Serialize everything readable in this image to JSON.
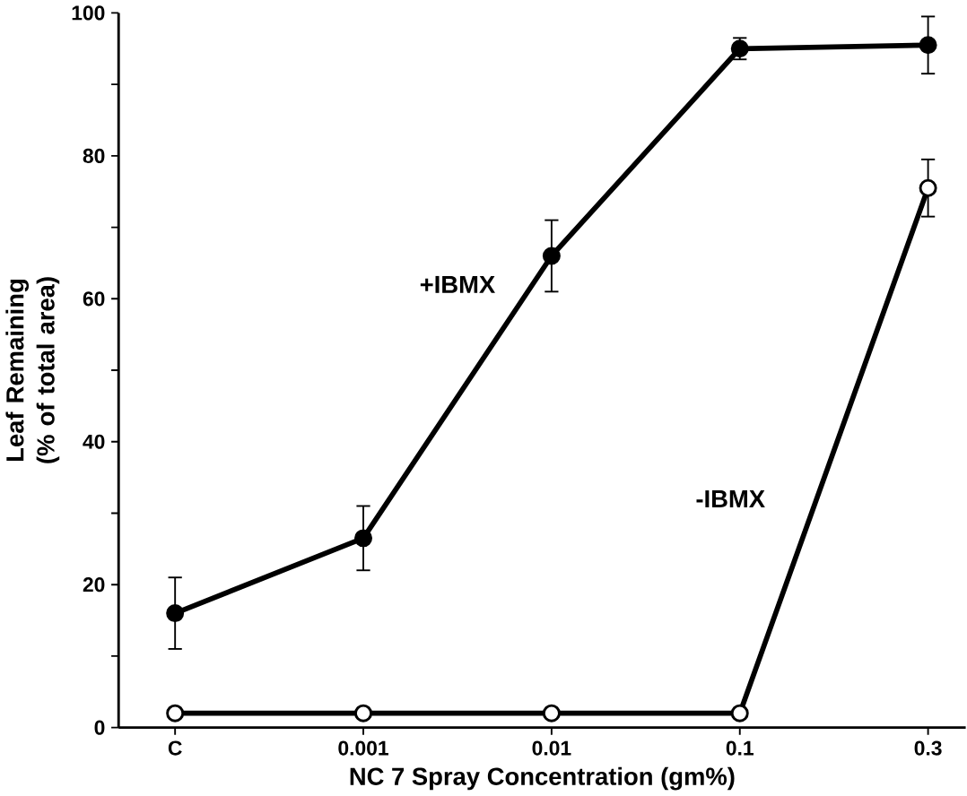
{
  "chart_data": {
    "type": "line",
    "xlabel": "NC 7 Spray Concentration (gm%)",
    "ylabel": "Leaf Remaining\n(% of total area)",
    "categories": [
      "C",
      "0.001",
      "0.01",
      "0.1",
      "0.3"
    ],
    "series": [
      {
        "name": "+IBMX",
        "color": "#000000",
        "marker": "circle",
        "values": [
          16,
          26.5,
          66,
          95,
          95.5
        ],
        "errors": [
          5,
          4.5,
          5,
          1.5,
          4
        ]
      },
      {
        "name": "-IBMX",
        "color": "#000000",
        "marker": "circle",
        "values": [
          2,
          2,
          2,
          2,
          75.5
        ],
        "errors": [
          null,
          null,
          null,
          null,
          4
        ]
      }
    ],
    "ylim": [
      0,
      100
    ],
    "yticks": [
      0,
      {
        "value": 10,
        "label": null
      },
      20,
      {
        "value": 30,
        "label": null
      },
      40,
      {
        "value": 50,
        "label": null
      },
      60,
      {
        "value": 70,
        "label": null
      },
      80,
      {
        "value": 90,
        "label": null
      },
      100
    ],
    "grid": false,
    "legend": false,
    "line_style": "solid"
  }
}
